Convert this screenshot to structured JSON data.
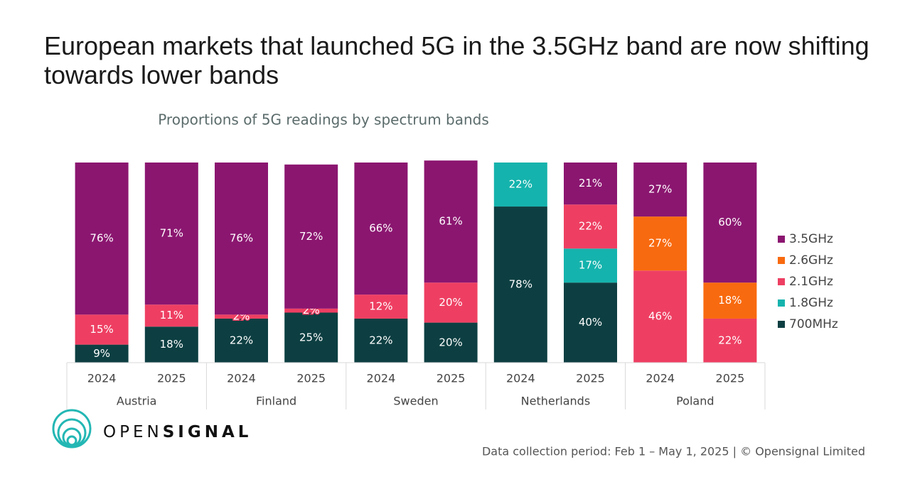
{
  "title": "European markets that launched 5G in the 3.5GHz band are now shifting towards lower bands",
  "footer": "Data collection period: Feb 1 – May 1, 2025 | © Opensignal Limited",
  "logo": {
    "left": "OPEN",
    "right": "SIGNAL"
  },
  "chart_data": {
    "type": "stacked_bar",
    "subtitle": "Proportions of 5G readings by spectrum bands",
    "categories": [
      "2024",
      "2025",
      "2024",
      "2025",
      "2024",
      "2025",
      "2024",
      "2025",
      "2024",
      "2025"
    ],
    "groups": [
      "Austria",
      "Finland",
      "Sweden",
      "Netherlands",
      "Poland"
    ],
    "ylim": [
      0,
      100
    ],
    "series": [
      {
        "name": "700MHz",
        "color": "#0d3f42",
        "values": [
          9,
          18,
          22,
          25,
          22,
          20,
          78,
          40,
          null,
          null
        ],
        "value_labels": [
          "9%",
          "18%",
          "22%",
          "25%",
          "22%",
          "20%",
          "78%",
          "40%",
          null,
          null
        ]
      },
      {
        "name": "1.8GHz",
        "color": "#15b3ad",
        "values": [
          null,
          null,
          null,
          null,
          null,
          null,
          22,
          17,
          null,
          null
        ],
        "value_labels": [
          null,
          null,
          null,
          null,
          null,
          null,
          "22%",
          "17%",
          null,
          null
        ]
      },
      {
        "name": "2.1GHz",
        "color": "#ee3f62",
        "values": [
          15,
          11,
          2,
          2,
          12,
          20,
          null,
          22,
          46,
          22
        ],
        "value_labels": [
          "15%",
          "11%",
          "2%",
          "2%",
          "12%",
          "20%",
          null,
          "22%",
          "46%",
          "22%"
        ]
      },
      {
        "name": "2.6GHz",
        "color": "#f86a0f",
        "values": [
          null,
          null,
          null,
          null,
          null,
          null,
          null,
          null,
          27,
          18
        ],
        "value_labels": [
          null,
          null,
          null,
          null,
          null,
          null,
          null,
          null,
          "27%",
          "18%"
        ]
      },
      {
        "name": "3.5GHz",
        "color": "#8b1670",
        "values": [
          76,
          71,
          76,
          72,
          66,
          61,
          null,
          21,
          27,
          60
        ],
        "value_labels": [
          "76%",
          "71%",
          "76%",
          "72%",
          "66%",
          "61%",
          null,
          "21%",
          "27%",
          "60%"
        ]
      }
    ]
  }
}
